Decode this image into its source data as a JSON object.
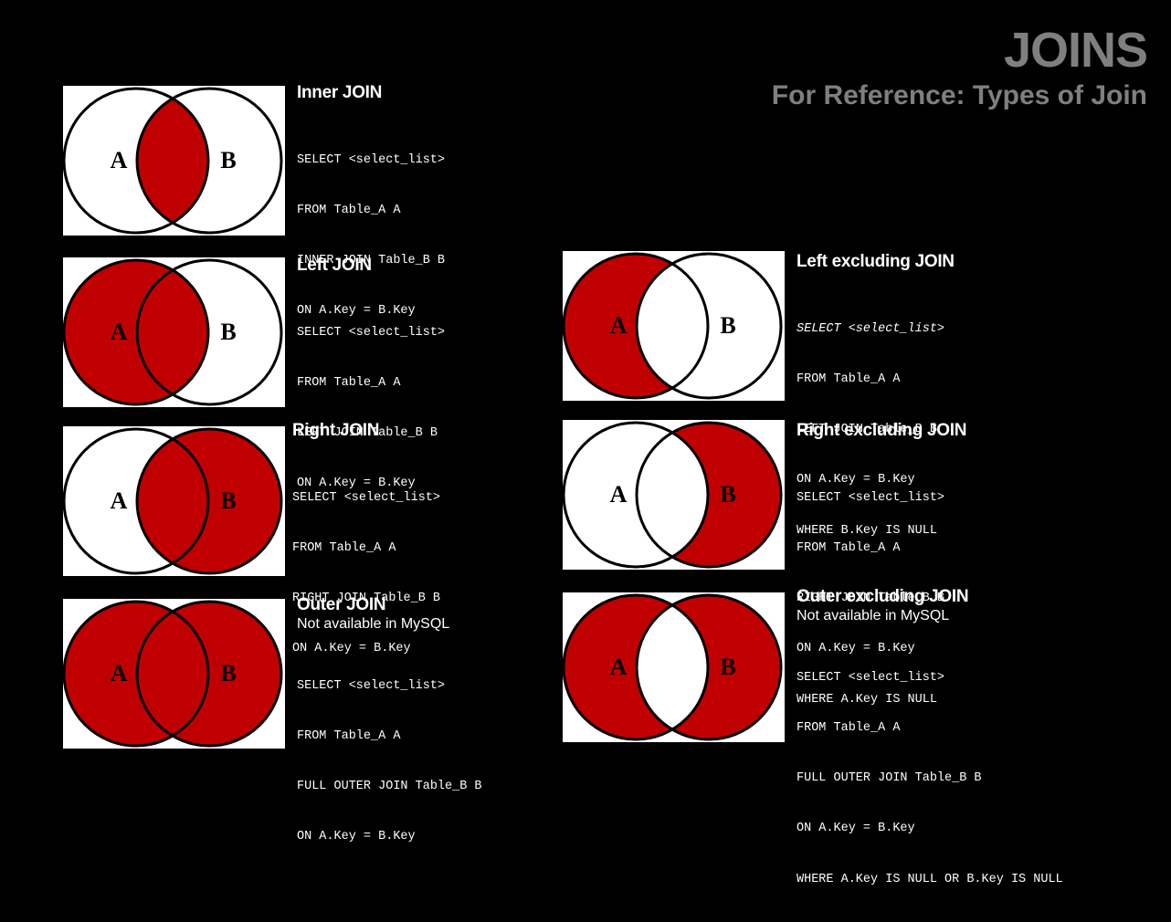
{
  "header": {
    "title": "JOINS",
    "subtitle": "For Reference: Types of Join"
  },
  "colors": {
    "fill": "#c00000",
    "background": "#000000",
    "panel": "#ffffff",
    "heading": "#7f7f7f"
  },
  "set_labels": {
    "a": "A",
    "b": "B"
  },
  "joins": [
    {
      "id": "inner",
      "title": "Inner JOIN",
      "note": "",
      "sql": [
        "SELECT <select_list>",
        "FROM Table_A A",
        "INNER JOIN Table_B B",
        "ON A.Key = B.Key"
      ]
    },
    {
      "id": "left",
      "title": "Left JOIN",
      "note": "",
      "sql": [
        "SELECT <select_list>",
        "FROM Table_A A",
        "LEFT JOIN Table_B B",
        "ON A.Key = B.Key"
      ]
    },
    {
      "id": "right",
      "title": "Right JOIN",
      "note": "",
      "sql": [
        "SELECT <select_list>",
        "FROM Table_A A",
        "RIGHT JOIN Table_B B",
        "ON A.Key = B.Key"
      ]
    },
    {
      "id": "outer",
      "title": "Outer JOIN",
      "note": "Not available in MySQL",
      "sql": [
        "SELECT <select_list>",
        "FROM Table_A A",
        "FULL OUTER JOIN Table_B B",
        "ON A.Key = B.Key"
      ]
    },
    {
      "id": "left-excluding",
      "title": "Left excluding JOIN",
      "note": "",
      "sql": [
        "SELECT <select_list>",
        "FROM Table_A A",
        "LEFT JOIN Table_B B",
        "ON A.Key = B.Key",
        "WHERE B.Key IS NULL"
      ]
    },
    {
      "id": "right-excluding",
      "title": "Right excluding JOIN",
      "note": "",
      "sql": [
        "SELECT <select_list>",
        "FROM Table_A A",
        "RIGHT JOIN Table_B B",
        "ON A.Key = B.Key",
        "WHERE A.Key IS NULL"
      ]
    },
    {
      "id": "outer-excluding",
      "title": "Outer excluding JOIN",
      "note": "Not available in MySQL",
      "sql": [
        "SELECT <select_list>",
        "FROM Table_A A",
        "FULL OUTER JOIN Table_B B",
        "ON A.Key = B.Key",
        "WHERE A.Key IS NULL OR B.Key IS NULL"
      ]
    }
  ]
}
